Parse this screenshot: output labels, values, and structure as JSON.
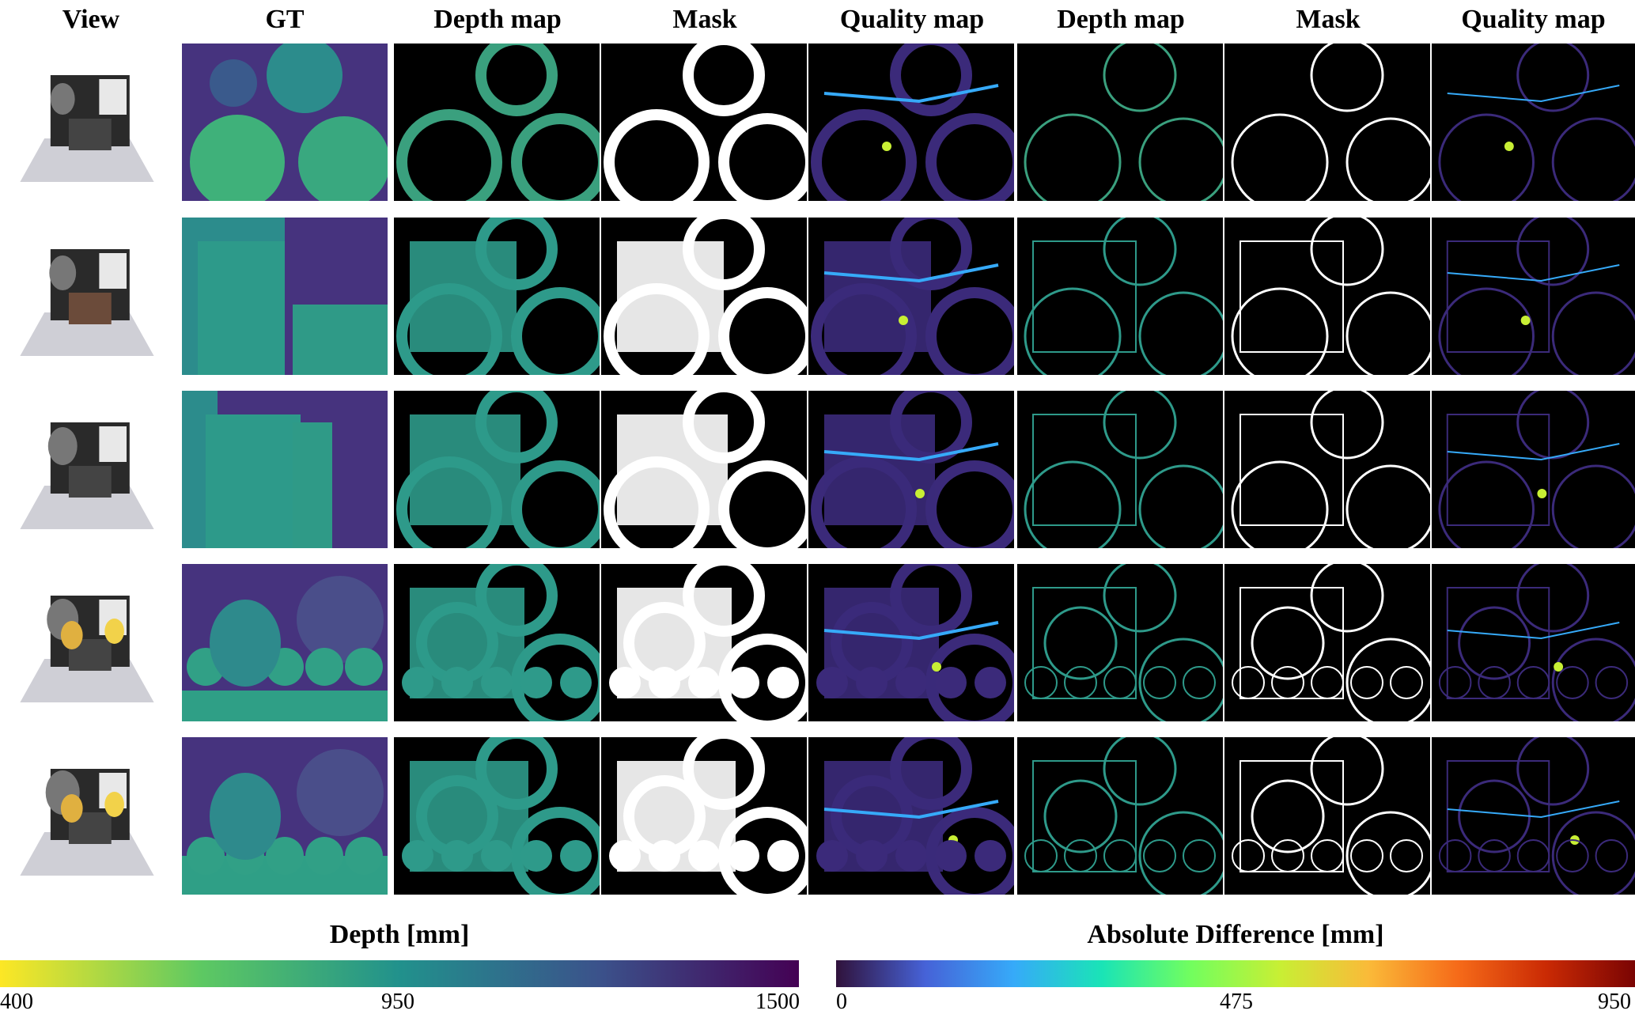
{
  "headers": {
    "view": "View",
    "gt": "GT",
    "depth_a": "Depth map",
    "mask_a": "Mask",
    "quality_a": "Quality map",
    "depth_b": "Depth map",
    "mask_b": "Mask",
    "quality_b": "Quality map"
  },
  "colorbars": {
    "depth": {
      "title": "Depth [mm]",
      "ticks": [
        "400",
        "950",
        "1500"
      ],
      "colors": [
        "#fde725",
        "#5ec962",
        "#21918c",
        "#3b528b",
        "#440154"
      ]
    },
    "difference": {
      "title": "Absolute Difference [mm]",
      "ticks": [
        "0",
        "475",
        "950"
      ],
      "colors": [
        "#30123b",
        "#4662d7",
        "#36aaf9",
        "#1ae4b6",
        "#72fe5e",
        "#c8ef34",
        "#faba39",
        "#f66b19",
        "#ca2a04",
        "#7a0403"
      ]
    }
  },
  "rows": 5,
  "colors": {
    "background_dark": "#440154",
    "depth_far": "#46337e",
    "depth_mid": "#2c8c8c",
    "depth_near": "#35b779",
    "mask_on": "#ffffff",
    "mask_off": "#000000"
  }
}
